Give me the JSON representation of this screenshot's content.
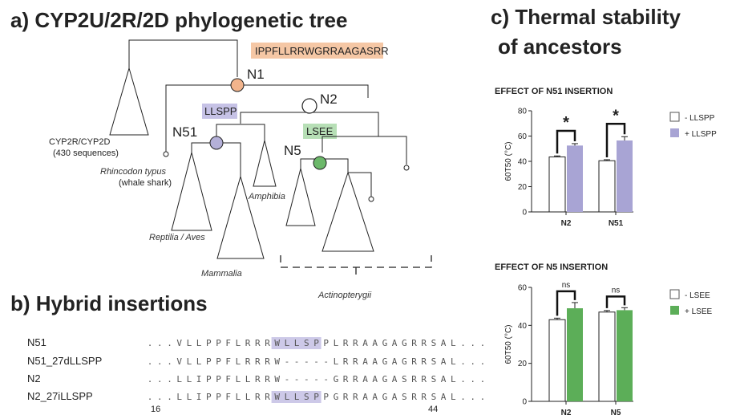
{
  "panel_a": {
    "title": "a) CYP2U/2R/2D phylogenetic tree",
    "insertion_n1": "IPPFLLRRWGRRAAGASRR",
    "insertion_n51": "LLSPP",
    "insertion_n5": "LSEE",
    "nodes": {
      "n1": "N1",
      "n2": "N2",
      "n51": "N51",
      "n5": "N5"
    },
    "node_colors": {
      "n1": "#f2b48c",
      "n2": "#ffffff",
      "n51": "#b4b0d8",
      "n5": "#6cb86a"
    },
    "clades": {
      "cyp2r_line1": "CYP2R/CYP2D",
      "cyp2r_line2": "(430 sequences)",
      "shark_line1": "Rhincodon typus",
      "shark_line2": "(whale shark)",
      "amphibia": "Amphibia",
      "reptilia": "Reptilia / Aves",
      "mammalia": "Mammalia",
      "actinopterygii": "Actinopterygii"
    }
  },
  "panel_b": {
    "title": "b) Hybrid insertions",
    "rows": [
      {
        "name": "N51",
        "seq": "...VLLPPFLRRRWLLSPPLRRAAGAGRRSAL...",
        "hl": [
          13,
          18
        ]
      },
      {
        "name": "N51_27dLLSPP",
        "seq": "...VLLPPFLRRRW-----LRRAAGAGRRSAL...",
        "hl": null
      },
      {
        "name": "N2",
        "seq": "...LLIPPFLLRRW-----GRRAAGASRRSAL...",
        "hl": null
      },
      {
        "name": "N2_27iLLSPP",
        "seq": "...LLIPPFLLRRWLLSPPGRRAAGASRRSAL...",
        "hl": [
          13,
          18
        ]
      }
    ],
    "pos_start": "16",
    "pos_end": "44"
  },
  "panel_c": {
    "title_line1": "c) Thermal stability",
    "title_line2": "of ancestors"
  },
  "chart_data": [
    {
      "type": "bar",
      "title": "EFFECT OF N51 INSERTION",
      "ylabel": "60T50 (°C)",
      "ylim": [
        0,
        80
      ],
      "yticks": [
        "0",
        "20",
        "40",
        "60",
        "80"
      ],
      "categories": [
        "N2",
        "N51"
      ],
      "series": [
        {
          "name": "- LLSPP",
          "color": "#ffffff",
          "values": [
            43.5,
            40.5
          ],
          "errors": [
            0.8,
            0.8
          ]
        },
        {
          "name": "+ LLSPP",
          "color": "#a8a4d4",
          "values": [
            52.5,
            56.5
          ],
          "errors": [
            1.5,
            3.0
          ]
        }
      ],
      "significance": [
        "*",
        "*"
      ]
    },
    {
      "type": "bar",
      "title": "EFFECT OF N5 INSERTION",
      "ylabel": "60T50 (°C)",
      "ylim": [
        0,
        60
      ],
      "yticks": [
        "0",
        "20",
        "40",
        "60"
      ],
      "categories": [
        "N2",
        "N5"
      ],
      "series": [
        {
          "name": "- LSEE",
          "color": "#ffffff",
          "values": [
            43.0,
            47.0
          ],
          "errors": [
            0.8,
            0.8
          ]
        },
        {
          "name": "+ LSEE",
          "color": "#5cae58",
          "values": [
            49.0,
            48.0
          ],
          "errors": [
            3.0,
            1.3
          ]
        }
      ],
      "significance": [
        "ns",
        "ns"
      ]
    }
  ]
}
